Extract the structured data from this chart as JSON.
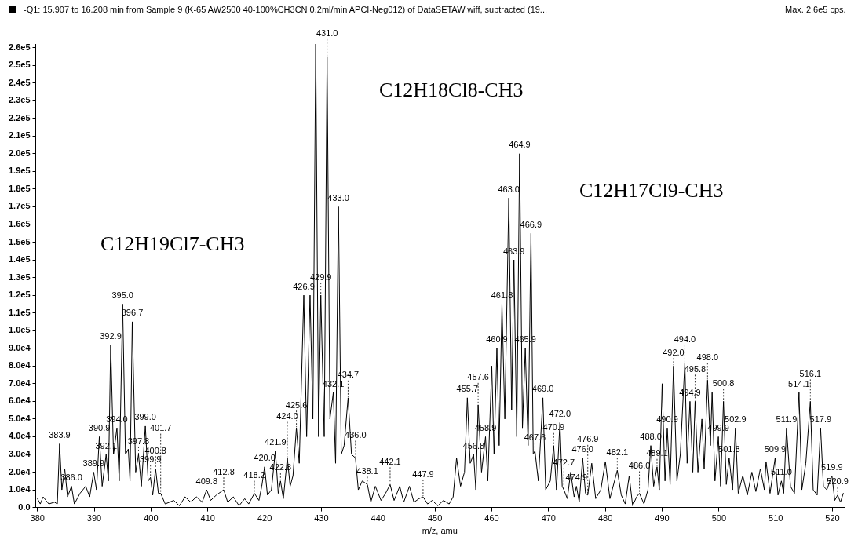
{
  "chart_data": {
    "type": "line",
    "title": "-Q1: 15.907 to 16.208 min from Sample 9 (K-65 AW2500 40-100%CH3CN 0.2ml/min APCI-Neg012) of DataSETAW.wiff, subtracted (19...",
    "xlabel": "m/z, amu",
    "x": [
      380,
      380.5,
      381,
      382,
      383,
      383.5,
      383.9,
      384.3,
      384.8,
      385.3,
      386.0,
      386.5,
      387.5,
      388.5,
      389.2,
      389.9,
      390.4,
      390.9,
      391.4,
      392.1,
      392.5,
      392.9,
      393.4,
      394.0,
      394.4,
      395.0,
      395.5,
      396.0,
      396.3,
      396.7,
      397.3,
      397.8,
      398.3,
      399.0,
      399.5,
      399.9,
      400.3,
      400.8,
      401.3,
      401.7,
      402.5,
      404,
      405,
      406,
      407,
      408,
      409,
      409.8,
      410.5,
      411.5,
      412.8,
      413.5,
      414.5,
      415.5,
      416.5,
      417.2,
      418.2,
      419,
      419.5,
      420.0,
      420.5,
      421.2,
      421.9,
      422.4,
      422.8,
      423.3,
      424.0,
      424.5,
      425.0,
      425.6,
      426.1,
      426.9,
      427.4,
      428.0,
      428.5,
      429.0,
      429.5,
      429.9,
      430.5,
      431.0,
      431.5,
      432.1,
      432.5,
      433.0,
      433.5,
      434.0,
      434.7,
      435.3,
      436.0,
      436.5,
      437.2,
      438.1,
      438.7,
      439.5,
      440.5,
      441.3,
      442.1,
      442.8,
      443.8,
      444.5,
      445.5,
      446.3,
      447.2,
      447.9,
      448.7,
      449.5,
      450.5,
      451.5,
      452.5,
      453.2,
      453.8,
      454.5,
      455.2,
      455.7,
      456.2,
      456.8,
      457.2,
      457.6,
      458.2,
      458.9,
      459.3,
      460.0,
      460.4,
      460.9,
      461.3,
      461.8,
      462.3,
      463.0,
      463.5,
      463.9,
      464.4,
      464.9,
      465.4,
      465.9,
      466.4,
      466.9,
      467.3,
      467.6,
      468.2,
      469.0,
      469.5,
      470.3,
      470.9,
      471.4,
      472.0,
      472.4,
      472.7,
      473.3,
      473.9,
      474.5,
      474.9,
      475.4,
      476.0,
      476.5,
      476.9,
      477.6,
      478.3,
      479.2,
      480.0,
      480.8,
      482.1,
      482.8,
      483.5,
      484.2,
      484.8,
      485.5,
      486.0,
      486.8,
      487.5,
      488.0,
      488.5,
      489.1,
      489.5,
      490.0,
      490.5,
      490.9,
      491.4,
      492.0,
      492.6,
      493.2,
      494.0,
      494.4,
      494.9,
      495.4,
      495.8,
      496.3,
      497.0,
      497.4,
      498.0,
      498.5,
      498.8,
      499.3,
      499.9,
      500.3,
      500.8,
      501.3,
      501.8,
      502.4,
      502.9,
      503.4,
      504.2,
      505,
      505.8,
      506.5,
      507.3,
      508,
      508.3,
      509,
      509.9,
      510.4,
      511.0,
      511.4,
      511.9,
      512.6,
      513.3,
      514.1,
      514.6,
      515.3,
      516.1,
      516.6,
      517.3,
      517.9,
      518.4,
      519.0,
      519.9,
      520.4,
      520.9,
      521.4,
      521.9
    ],
    "values": [
      5000,
      2000,
      6000,
      2000,
      3000,
      2000,
      36000,
      10000,
      22000,
      6000,
      12000,
      2000,
      8000,
      12000,
      6000,
      20000,
      10000,
      40000,
      12000,
      30000,
      15000,
      92000,
      30000,
      45000,
      15000,
      115000,
      30000,
      33000,
      15000,
      105000,
      20000,
      30000,
      12000,
      46000,
      15000,
      17000,
      7000,
      22000,
      8000,
      8000,
      2000,
      4000,
      1000,
      6000,
      3000,
      6000,
      3000,
      10000,
      4000,
      7000,
      10000,
      3000,
      6000,
      1000,
      5000,
      2000,
      8000,
      4000,
      12000,
      23000,
      7000,
      10000,
      32000,
      8000,
      15000,
      5000,
      28000,
      12000,
      18000,
      45000,
      25000,
      120000,
      40000,
      120000,
      50000,
      262000,
      40000,
      120000,
      40000,
      255000,
      50000,
      65000,
      25000,
      170000,
      30000,
      35000,
      62000,
      30000,
      28000,
      10000,
      15000,
      13000,
      3000,
      12000,
      4000,
      8000,
      13000,
      4000,
      12000,
      3000,
      12000,
      3000,
      5000,
      6000,
      2000,
      4000,
      1000,
      4000,
      2000,
      6000,
      28000,
      12000,
      20000,
      62000,
      25000,
      30000,
      10000,
      58000,
      20000,
      40000,
      15000,
      80000,
      30000,
      90000,
      35000,
      115000,
      50000,
      175000,
      55000,
      140000,
      40000,
      200000,
      45000,
      90000,
      35000,
      155000,
      30000,
      32000,
      15000,
      62000,
      10000,
      15000,
      35000,
      10000,
      48000,
      12000,
      10000,
      5000,
      20000,
      6000,
      12000,
      3000,
      28000,
      8000,
      7000,
      25000,
      5000,
      10000,
      26000,
      5000,
      21000,
      7000,
      2000,
      18000,
      1000,
      6000,
      8000,
      2000,
      10000,
      35000,
      12000,
      23000,
      10000,
      70000,
      15000,
      45000,
      13000,
      80000,
      15000,
      30000,
      82000,
      25000,
      60000,
      20000,
      60000,
      20000,
      50000,
      22000,
      72000,
      35000,
      65000,
      15000,
      40000,
      12000,
      60000,
      13000,
      28000,
      10000,
      45000,
      8000,
      18000,
      7000,
      20000,
      9000,
      22000,
      10000,
      26000,
      8000,
      28000,
      7000,
      15000,
      8000,
      45000,
      12000,
      8000,
      65000,
      10000,
      25000,
      60000,
      10000,
      7000,
      45000,
      12000,
      10000,
      18000,
      4000,
      7000,
      3000,
      8000
    ],
    "color": "#000000",
    "marker": "none",
    "line_style": "solid",
    "grid": false,
    "legend": false,
    "xlim": [
      379.7,
      522
    ],
    "xticks": [
      380,
      390,
      400,
      410,
      420,
      430,
      440,
      450,
      460,
      470,
      480,
      490,
      500,
      510,
      520
    ],
    "ylim": [
      0,
      262000
    ],
    "yticks": [
      {
        "value": 0,
        "label": "0.0"
      },
      {
        "value": 10000,
        "label": "1.0e4"
      },
      {
        "value": 20000,
        "label": "2.0e4"
      },
      {
        "value": 30000,
        "label": "3.0e4"
      },
      {
        "value": 40000,
        "label": "4.0e4"
      },
      {
        "value": 50000,
        "label": "5.0e4"
      },
      {
        "value": 60000,
        "label": "6.0e4"
      },
      {
        "value": 70000,
        "label": "7.0e4"
      },
      {
        "value": 80000,
        "label": "8.0e4"
      },
      {
        "value": 90000,
        "label": "9.0e4"
      },
      {
        "value": 100000,
        "label": "1.0e5"
      },
      {
        "value": 110000,
        "label": "1.1e5"
      },
      {
        "value": 120000,
        "label": "1.2e5"
      },
      {
        "value": 130000,
        "label": "1.3e5"
      },
      {
        "value": 140000,
        "label": "1.4e5"
      },
      {
        "value": 150000,
        "label": "1.5e5"
      },
      {
        "value": 160000,
        "label": "1.6e5"
      },
      {
        "value": 170000,
        "label": "1.7e5"
      },
      {
        "value": 180000,
        "label": "1.8e5"
      },
      {
        "value": 190000,
        "label": "1.9e5"
      },
      {
        "value": 200000,
        "label": "2.0e5"
      },
      {
        "value": 210000,
        "label": "2.1e5"
      },
      {
        "value": 220000,
        "label": "2.2e5"
      },
      {
        "value": 230000,
        "label": "2.3e5"
      },
      {
        "value": 240000,
        "label": "2.4e5"
      },
      {
        "value": 250000,
        "label": "2.5e5"
      },
      {
        "value": 260000,
        "label": "2.6e5"
      }
    ],
    "annotations": [
      "Max. 2.6e5 cps.",
      "C12H19Cl7-CH3",
      "C12H18Cl8-CH3",
      "C12H17Cl9-CH3",
      {
        "text": "383.9",
        "x": 383.9,
        "y": 36000
      },
      {
        "text": "386.0",
        "x": 386.0,
        "y": 12000
      },
      {
        "text": "389.9",
        "x": 389.9,
        "y": 20000
      },
      {
        "text": "390.9",
        "x": 390.9,
        "y": 40000
      },
      {
        "text": "392.1",
        "x": 392.1,
        "y": 30000
      },
      {
        "text": "392.9",
        "x": 392.9,
        "y": 92000
      },
      {
        "text": "394.0",
        "x": 394.0,
        "y": 45000
      },
      {
        "text": "395.0",
        "x": 395.0,
        "y": 115000
      },
      {
        "text": "396.7",
        "x": 396.7,
        "y": 105000
      },
      {
        "text": "397.8",
        "x": 397.8,
        "y": 30000
      },
      {
        "text": "399.0",
        "x": 399.0,
        "y": 46000
      },
      {
        "text": "399.9",
        "x": 399.9,
        "y": 17000
      },
      {
        "text": "400.8",
        "x": 400.8,
        "y": 22000
      },
      {
        "text": "401.7",
        "x": 401.7,
        "y": 8000
      },
      {
        "text": "409.8",
        "x": 409.8,
        "y": 10000
      },
      {
        "text": "412.8",
        "x": 412.8,
        "y": 10000
      },
      {
        "text": "418.2",
        "x": 418.2,
        "y": 8000
      },
      {
        "text": "420.0",
        "x": 420.0,
        "y": 23000
      },
      {
        "text": "421.9",
        "x": 421.9,
        "y": 32000
      },
      {
        "text": "422.8",
        "x": 422.8,
        "y": 15000
      },
      {
        "text": "424.0",
        "x": 424.0,
        "y": 28000
      },
      {
        "text": "425.6",
        "x": 425.6,
        "y": 45000
      },
      {
        "text": "426.9",
        "x": 426.9,
        "y": 120000
      },
      {
        "text": "429.9",
        "x": 429.9,
        "y": 120000
      },
      {
        "text": "431.0",
        "x": 431.0,
        "y": 255000
      },
      {
        "text": "432.1",
        "x": 432.1,
        "y": 65000
      },
      {
        "text": "433.0",
        "x": 433.0,
        "y": 170000
      },
      {
        "text": "434.7",
        "x": 434.7,
        "y": 62000
      },
      {
        "text": "436.0",
        "x": 436.0,
        "y": 28000
      },
      {
        "text": "438.1",
        "x": 438.1,
        "y": 13000
      },
      {
        "text": "442.1",
        "x": 442.1,
        "y": 13000
      },
      {
        "text": "447.9",
        "x": 447.9,
        "y": 6000
      },
      {
        "text": "455.7",
        "x": 455.7,
        "y": 62000
      },
      {
        "text": "456.8",
        "x": 456.8,
        "y": 30000
      },
      {
        "text": "457.6",
        "x": 457.6,
        "y": 58000
      },
      {
        "text": "458.9",
        "x": 458.9,
        "y": 40000
      },
      {
        "text": "460.9",
        "x": 460.9,
        "y": 90000
      },
      {
        "text": "461.8",
        "x": 461.8,
        "y": 115000
      },
      {
        "text": "463.0",
        "x": 463.0,
        "y": 175000
      },
      {
        "text": "463.9",
        "x": 463.9,
        "y": 140000
      },
      {
        "text": "464.9",
        "x": 464.9,
        "y": 200000
      },
      {
        "text": "465.9",
        "x": 465.9,
        "y": 90000
      },
      {
        "text": "466.9",
        "x": 466.9,
        "y": 155000
      },
      {
        "text": "467.6",
        "x": 467.6,
        "y": 32000
      },
      {
        "text": "469.0",
        "x": 469.0,
        "y": 62000
      },
      {
        "text": "470.9",
        "x": 470.9,
        "y": 35000
      },
      {
        "text": "472.0",
        "x": 472.0,
        "y": 48000
      },
      {
        "text": "472.7",
        "x": 472.7,
        "y": 10000
      },
      {
        "text": "474.9",
        "x": 474.9,
        "y": 12000
      },
      {
        "text": "476.0",
        "x": 476.0,
        "y": 28000
      },
      {
        "text": "476.9",
        "x": 476.9,
        "y": 7000
      },
      {
        "text": "482.1",
        "x": 482.1,
        "y": 21000
      },
      {
        "text": "486.0",
        "x": 486.0,
        "y": 8000
      },
      {
        "text": "488.0",
        "x": 488.0,
        "y": 35000
      },
      {
        "text": "489.1",
        "x": 489.1,
        "y": 23000
      },
      {
        "text": "490.9",
        "x": 490.9,
        "y": 45000
      },
      {
        "text": "492.0",
        "x": 492.0,
        "y": 80000
      },
      {
        "text": "494.0",
        "x": 494.0,
        "y": 82000
      },
      {
        "text": "494.9",
        "x": 494.9,
        "y": 60000
      },
      {
        "text": "495.8",
        "x": 495.8,
        "y": 60000
      },
      {
        "text": "498.0",
        "x": 498.0,
        "y": 72000
      },
      {
        "text": "499.9",
        "x": 499.9,
        "y": 40000
      },
      {
        "text": "500.8",
        "x": 500.8,
        "y": 60000
      },
      {
        "text": "501.8",
        "x": 501.8,
        "y": 28000
      },
      {
        "text": "502.9",
        "x": 502.9,
        "y": 45000
      },
      {
        "text": "509.9",
        "x": 509.9,
        "y": 28000
      },
      {
        "text": "511.0",
        "x": 511.0,
        "y": 15000
      },
      {
        "text": "511.9",
        "x": 511.9,
        "y": 45000
      },
      {
        "text": "514.1",
        "x": 514.1,
        "y": 65000
      },
      {
        "text": "516.1",
        "x": 516.1,
        "y": 60000
      },
      {
        "text": "517.9",
        "x": 517.9,
        "y": 45000
      },
      {
        "text": "519.9",
        "x": 519.9,
        "y": 18000
      },
      {
        "text": "520.9",
        "x": 520.9,
        "y": 7000
      }
    ]
  }
}
